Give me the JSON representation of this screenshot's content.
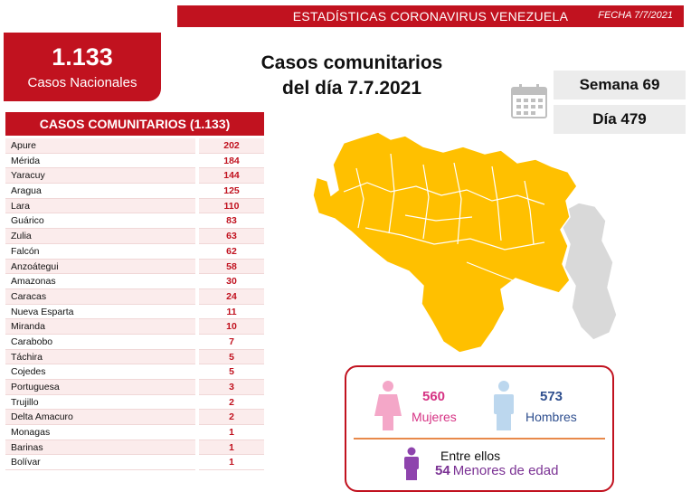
{
  "header": {
    "title": "ESTADÍSTICAS CORONAVIRUS VENEZUELA",
    "date": "FECHA 7/7/2021"
  },
  "national": {
    "number": "1.133",
    "label": "Casos Nacionales"
  },
  "main_title": {
    "line1": "Casos comunitarios",
    "line2": "del día 7.7.2021"
  },
  "week": "Semana 69",
  "day": "Día 479",
  "table": {
    "header": "CASOS COMUNITARIOS (1.133)",
    "rows": [
      {
        "state": "Apure",
        "count": "202"
      },
      {
        "state": "Mérida",
        "count": "184"
      },
      {
        "state": "Yaracuy",
        "count": "144"
      },
      {
        "state": "Aragua",
        "count": "125"
      },
      {
        "state": "Lara",
        "count": "110"
      },
      {
        "state": "Guárico",
        "count": "83"
      },
      {
        "state": "Zulia",
        "count": "63"
      },
      {
        "state": "Falcón",
        "count": "62"
      },
      {
        "state": "Anzoátegui",
        "count": "58"
      },
      {
        "state": "Amazonas",
        "count": "30"
      },
      {
        "state": "Caracas",
        "count": "24"
      },
      {
        "state": "Nueva Esparta",
        "count": "11"
      },
      {
        "state": "Miranda",
        "count": "10"
      },
      {
        "state": "Carabobo",
        "count": "7"
      },
      {
        "state": "Táchira",
        "count": "5"
      },
      {
        "state": "Cojedes",
        "count": "5"
      },
      {
        "state": "Portuguesa",
        "count": "3"
      },
      {
        "state": "Trujillo",
        "count": "2"
      },
      {
        "state": "Delta Amacuro",
        "count": "2"
      },
      {
        "state": "Monagas",
        "count": "1"
      },
      {
        "state": "Barinas",
        "count": "1"
      },
      {
        "state": "Bolívar",
        "count": "1"
      }
    ]
  },
  "gender": {
    "female_count": "560",
    "female_label": "Mujeres",
    "male_count": "573",
    "male_label": "Hombres",
    "among_label": "Entre ellos",
    "minors_count": "54",
    "minors_label": "Menores de edad"
  },
  "colors": {
    "brand_red": "#c1121f",
    "map_yellow": "#ffc000",
    "map_gray": "#d9d9d9",
    "female_pink": "#d63384",
    "male_blue": "#2f4f8f",
    "minor_purple": "#7b3294"
  },
  "icons": {
    "calendar": "calendar-icon",
    "female": "female-person-icon",
    "male": "male-person-icon",
    "minor": "child-person-icon"
  }
}
